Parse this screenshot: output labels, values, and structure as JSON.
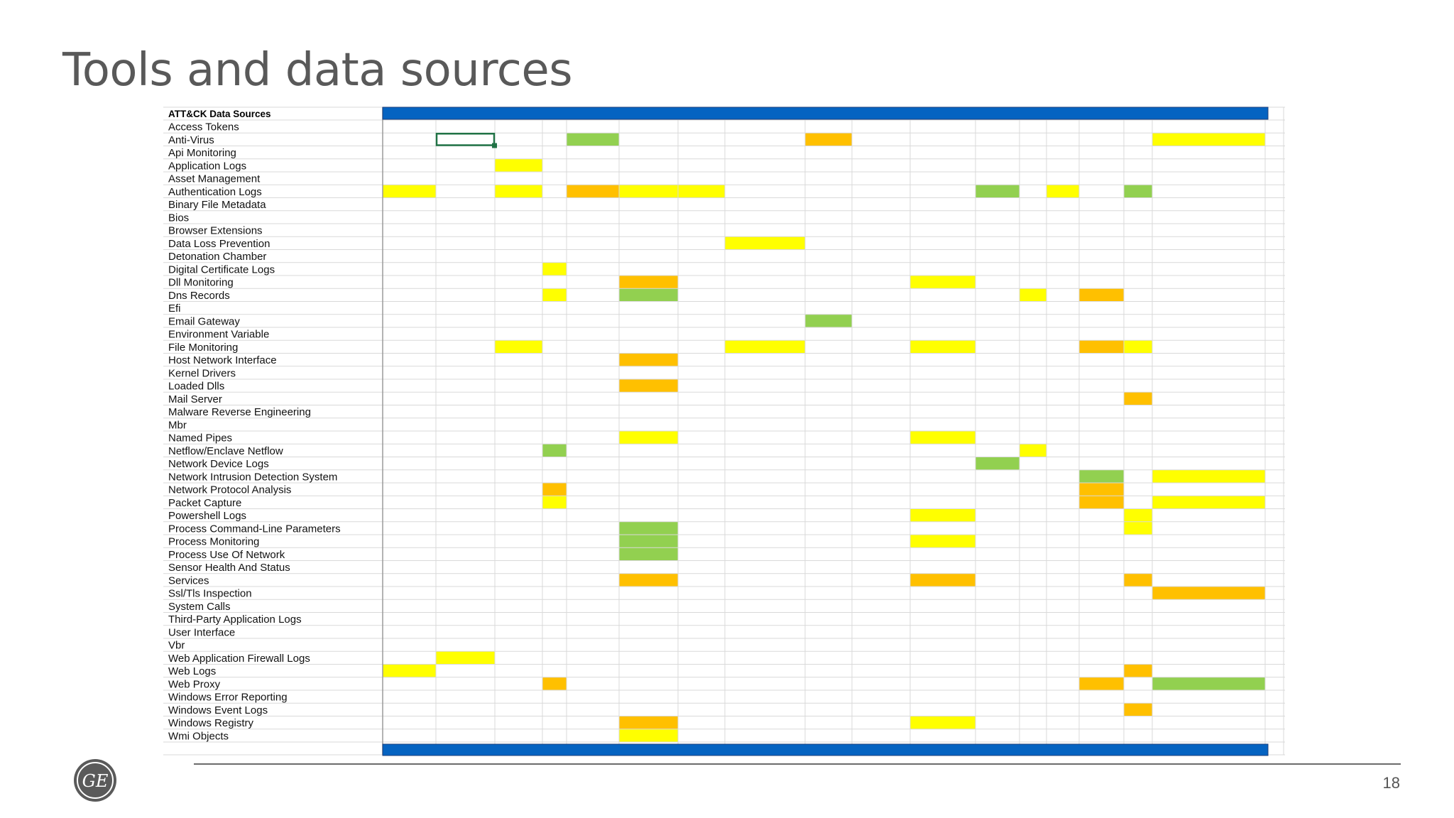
{
  "slide": {
    "title": "Tools and data sources",
    "page_number": "18"
  },
  "colors": {
    "yellow": "#ffff00",
    "orange": "#ffc000",
    "green": "#92d050",
    "blue_bar": "#0563c1",
    "selection": "#217346",
    "grid_line": "#d9d9d9"
  },
  "table": {
    "header_label": "ATT&CK Data Sources",
    "rows": [
      "Access Tokens",
      "Anti-Virus",
      "Api Monitoring",
      "Application Logs",
      "Asset Management",
      "Authentication Logs",
      "Binary File Metadata",
      "Bios",
      "Browser Extensions",
      "Data Loss Prevention",
      "Detonation Chamber",
      "Digital Certificate Logs",
      "Dll Monitoring",
      "Dns Records",
      "Efi",
      "Email Gateway",
      "Environment Variable",
      "File Monitoring",
      "Host Network Interface",
      "Kernel Drivers",
      "Loaded Dlls",
      "Mail Server",
      "Malware Reverse Engineering",
      "Mbr",
      "Named Pipes",
      "Netflow/Enclave Netflow",
      "Network Device Logs",
      "Network Intrusion Detection System",
      "Network Protocol Analysis",
      "Packet Capture",
      "Powershell Logs",
      "Process Command-Line Parameters",
      "Process Monitoring",
      "Process Use Of Network",
      "Sensor Health And Status",
      "Services",
      "Ssl/Tls Inspection",
      "System Calls",
      "Third-Party Application Logs",
      "User Interface",
      "Vbr",
      "Web Application Firewall Logs",
      "Web Logs",
      "Web Proxy",
      "Windows Error Reporting",
      "Windows Event Logs",
      "Windows Registry",
      "Wmi Objects"
    ],
    "column_count": 18,
    "selected_cell": {
      "row": 1,
      "col": 1
    },
    "cells": [
      [
        1,
        4,
        "green"
      ],
      [
        1,
        8,
        "orange"
      ],
      [
        1,
        16,
        "yellow"
      ],
      [
        3,
        2,
        "yellow"
      ],
      [
        5,
        0,
        "yellow"
      ],
      [
        5,
        2,
        "yellow"
      ],
      [
        5,
        4,
        "orange"
      ],
      [
        5,
        5,
        "yellow"
      ],
      [
        5,
        6,
        "yellow"
      ],
      [
        5,
        11,
        "green"
      ],
      [
        5,
        13,
        "yellow"
      ],
      [
        5,
        15,
        "green"
      ],
      [
        9,
        7,
        "yellow"
      ],
      [
        11,
        3,
        "yellow"
      ],
      [
        12,
        5,
        "orange"
      ],
      [
        12,
        10,
        "yellow"
      ],
      [
        13,
        3,
        "yellow"
      ],
      [
        13,
        5,
        "green"
      ],
      [
        13,
        12,
        "yellow"
      ],
      [
        13,
        14,
        "orange"
      ],
      [
        15,
        8,
        "green"
      ],
      [
        17,
        2,
        "yellow"
      ],
      [
        17,
        7,
        "yellow"
      ],
      [
        17,
        10,
        "yellow"
      ],
      [
        17,
        14,
        "orange"
      ],
      [
        17,
        15,
        "yellow"
      ],
      [
        18,
        5,
        "orange"
      ],
      [
        20,
        5,
        "orange"
      ],
      [
        21,
        15,
        "orange"
      ],
      [
        24,
        5,
        "yellow"
      ],
      [
        24,
        10,
        "yellow"
      ],
      [
        25,
        3,
        "green"
      ],
      [
        25,
        12,
        "yellow"
      ],
      [
        26,
        11,
        "green"
      ],
      [
        27,
        14,
        "green"
      ],
      [
        27,
        16,
        "yellow"
      ],
      [
        28,
        3,
        "orange"
      ],
      [
        28,
        14,
        "orange"
      ],
      [
        29,
        3,
        "yellow"
      ],
      [
        29,
        14,
        "orange"
      ],
      [
        29,
        16,
        "yellow"
      ],
      [
        30,
        10,
        "yellow"
      ],
      [
        30,
        15,
        "yellow"
      ],
      [
        31,
        5,
        "green"
      ],
      [
        31,
        15,
        "yellow"
      ],
      [
        32,
        5,
        "green"
      ],
      [
        32,
        10,
        "yellow"
      ],
      [
        33,
        5,
        "green"
      ],
      [
        35,
        5,
        "orange"
      ],
      [
        35,
        10,
        "orange"
      ],
      [
        35,
        15,
        "orange"
      ],
      [
        36,
        16,
        "orange"
      ],
      [
        41,
        1,
        "yellow"
      ],
      [
        42,
        0,
        "yellow"
      ],
      [
        42,
        15,
        "orange"
      ],
      [
        43,
        3,
        "orange"
      ],
      [
        43,
        14,
        "orange"
      ],
      [
        43,
        16,
        "green"
      ],
      [
        45,
        15,
        "orange"
      ],
      [
        46,
        5,
        "orange"
      ],
      [
        46,
        10,
        "yellow"
      ],
      [
        47,
        5,
        "yellow"
      ]
    ]
  },
  "logo": {
    "text": "GE"
  }
}
